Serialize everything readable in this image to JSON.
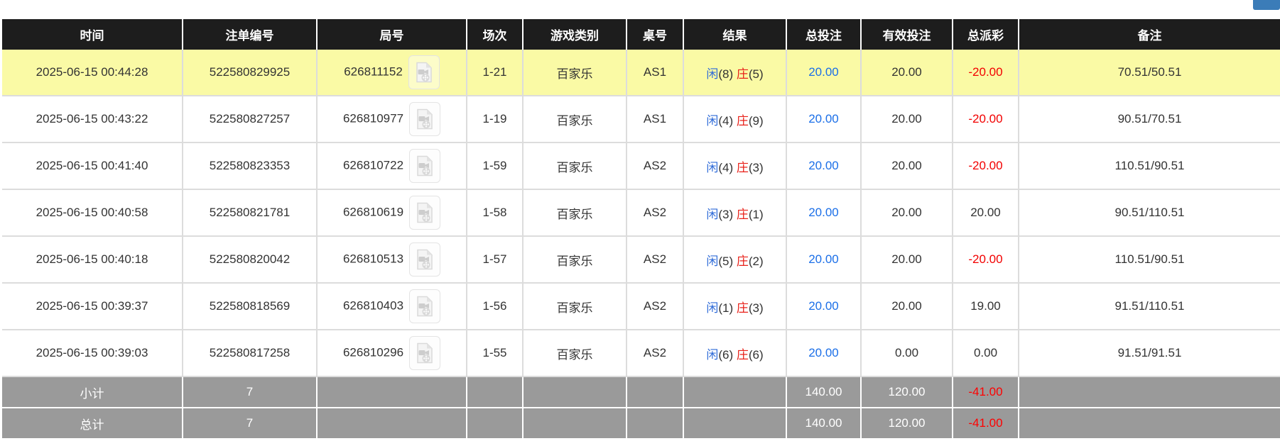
{
  "top_bar": {
    "partial_button": {
      "color": "#3b7cb8"
    }
  },
  "table": {
    "columns": [
      {
        "key": "time",
        "label": "时间"
      },
      {
        "key": "bet_id",
        "label": "注单编号"
      },
      {
        "key": "round_id",
        "label": "局号"
      },
      {
        "key": "session",
        "label": "场次"
      },
      {
        "key": "game_type",
        "label": "游戏类别"
      },
      {
        "key": "table_no",
        "label": "桌号"
      },
      {
        "key": "result",
        "label": "结果"
      },
      {
        "key": "total_bet",
        "label": "总投注"
      },
      {
        "key": "valid_bet",
        "label": "有效投注"
      },
      {
        "key": "total_payout",
        "label": "总派彩"
      },
      {
        "key": "remark",
        "label": "备注"
      }
    ],
    "result_labels": {
      "player": "闲",
      "banker": "庄"
    },
    "icons": {
      "round_video": "video-file-icon"
    },
    "rows": [
      {
        "highlighted": true,
        "time": "2025-06-15 00:44:28",
        "bet_id": "522580829925",
        "round_id": "626811152",
        "session": "1-21",
        "game_type": "百家乐",
        "table_no": "AS1",
        "result": {
          "player": "8",
          "banker": "5"
        },
        "total_bet": "20.00",
        "valid_bet": "20.00",
        "total_payout": "-20.00",
        "remark": "70.51/50.51"
      },
      {
        "highlighted": false,
        "time": "2025-06-15 00:43:22",
        "bet_id": "522580827257",
        "round_id": "626810977",
        "session": "1-19",
        "game_type": "百家乐",
        "table_no": "AS1",
        "result": {
          "player": "4",
          "banker": "9"
        },
        "total_bet": "20.00",
        "valid_bet": "20.00",
        "total_payout": "-20.00",
        "remark": "90.51/70.51"
      },
      {
        "highlighted": false,
        "time": "2025-06-15 00:41:40",
        "bet_id": "522580823353",
        "round_id": "626810722",
        "session": "1-59",
        "game_type": "百家乐",
        "table_no": "AS2",
        "result": {
          "player": "4",
          "banker": "3"
        },
        "total_bet": "20.00",
        "valid_bet": "20.00",
        "total_payout": "-20.00",
        "remark": "110.51/90.51"
      },
      {
        "highlighted": false,
        "time": "2025-06-15 00:40:58",
        "bet_id": "522580821781",
        "round_id": "626810619",
        "session": "1-58",
        "game_type": "百家乐",
        "table_no": "AS2",
        "result": {
          "player": "3",
          "banker": "1"
        },
        "total_bet": "20.00",
        "valid_bet": "20.00",
        "total_payout": "20.00",
        "remark": "90.51/110.51"
      },
      {
        "highlighted": false,
        "time": "2025-06-15 00:40:18",
        "bet_id": "522580820042",
        "round_id": "626810513",
        "session": "1-57",
        "game_type": "百家乐",
        "table_no": "AS2",
        "result": {
          "player": "5",
          "banker": "2"
        },
        "total_bet": "20.00",
        "valid_bet": "20.00",
        "total_payout": "-20.00",
        "remark": "110.51/90.51"
      },
      {
        "highlighted": false,
        "time": "2025-06-15 00:39:37",
        "bet_id": "522580818569",
        "round_id": "626810403",
        "session": "1-56",
        "game_type": "百家乐",
        "table_no": "AS2",
        "result": {
          "player": "1",
          "banker": "3"
        },
        "total_bet": "20.00",
        "valid_bet": "20.00",
        "total_payout": "19.00",
        "remark": "91.51/110.51"
      },
      {
        "highlighted": false,
        "time": "2025-06-15 00:39:03",
        "bet_id": "522580817258",
        "round_id": "626810296",
        "session": "1-55",
        "game_type": "百家乐",
        "table_no": "AS2",
        "result": {
          "player": "6",
          "banker": "6"
        },
        "total_bet": "20.00",
        "valid_bet": "0.00",
        "total_payout": "0.00",
        "remark": "91.51/91.51"
      }
    ],
    "summary_rows": [
      {
        "label": "小计",
        "count": "7",
        "total_bet": "140.00",
        "valid_bet": "120.00",
        "total_payout": "-41.00",
        "remark": ""
      },
      {
        "label": "总计",
        "count": "7",
        "total_bet": "140.00",
        "valid_bet": "120.00",
        "total_payout": "-41.00",
        "remark": ""
      }
    ]
  },
  "colors": {
    "header_bg": "#1d1d1d",
    "row_highlight": "#fafaa5",
    "summary_bg": "#9a9a9a",
    "bet_blue": "#1b6fe8",
    "loss_red": "#f20000",
    "player_blue": "#2f6bd8",
    "banker_red": "#e8211a"
  }
}
